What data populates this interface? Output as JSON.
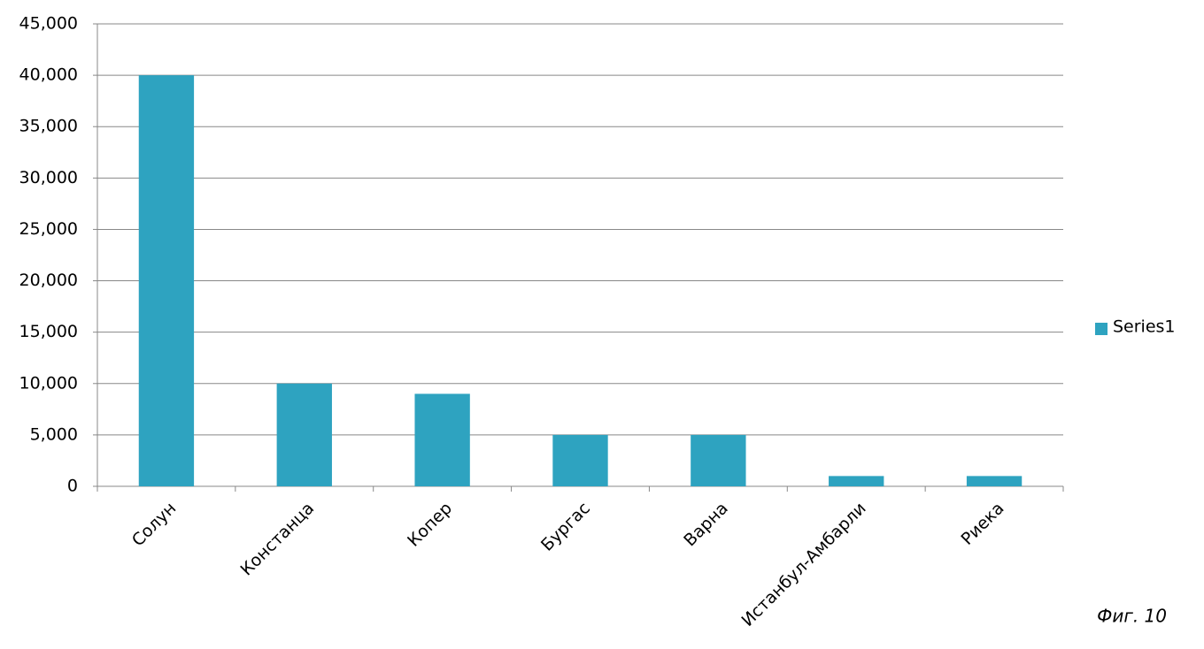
{
  "chart_data": {
    "type": "bar",
    "categories": [
      "Солун",
      "Констанца",
      "Копер",
      "Бургас",
      "Варна",
      "Истанбул-Амбарли",
      "Риека"
    ],
    "series": [
      {
        "name": "Series1",
        "color": "#2ea3c0",
        "values": [
          40000,
          10000,
          9000,
          5000,
          5000,
          1000,
          1000
        ]
      }
    ],
    "ylim": [
      0,
      45000
    ],
    "yticks": [
      0,
      {
        "value": 5000,
        "label": "5,000"
      },
      {
        "value": 10000,
        "label": "10,000"
      },
      {
        "value": 15000,
        "label": "15,000"
      },
      {
        "value": 20000,
        "label": "20,000"
      },
      {
        "value": 25000,
        "label": "25,000"
      },
      {
        "value": 30000,
        "label": "30,000"
      },
      {
        "value": 35000,
        "label": "35,000"
      },
      {
        "value": 40000,
        "label": "40,000"
      },
      {
        "value": 45000,
        "label": "45,000"
      }
    ],
    "grid": true,
    "legend_position": "right",
    "annotation": "Фиг. 10"
  }
}
